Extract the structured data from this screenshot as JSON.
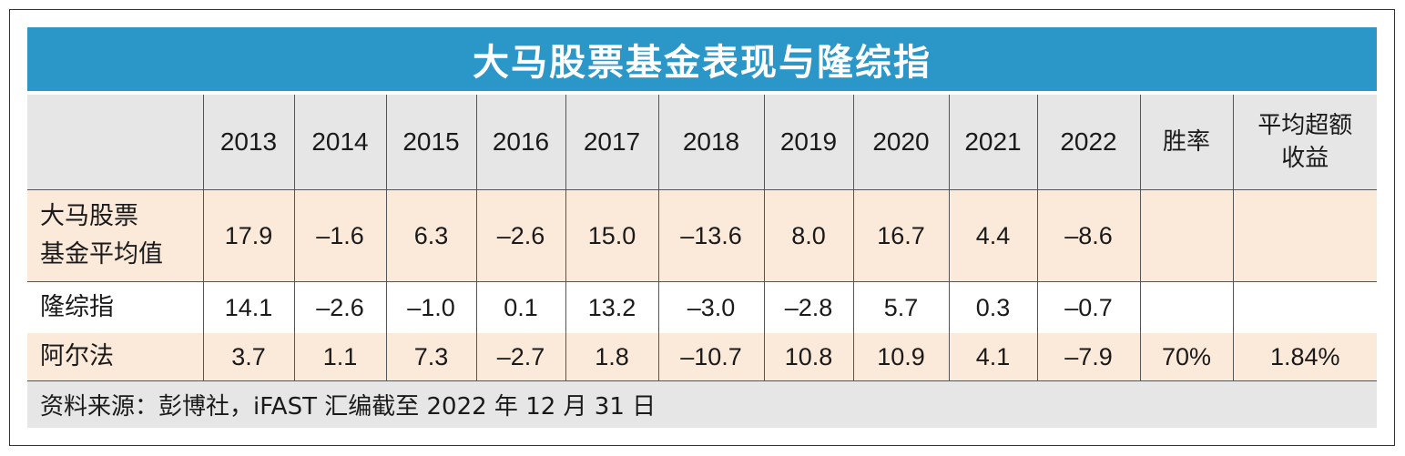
{
  "title": "大马股票基金表现与隆综指",
  "table": {
    "columns": [
      "",
      "2013",
      "2014",
      "2015",
      "2016",
      "2017",
      "2018",
      "2019",
      "2020",
      "2021",
      "2022",
      "胜率",
      "平均超额收益"
    ],
    "header_win_rate": "胜率",
    "header_excess_line1": "平均超额",
    "header_excess_line2": "收益",
    "rows": [
      {
        "label_line1": "大马股票",
        "label_line2": "基金平均值",
        "values": [
          "17.9",
          "–1.6",
          "6.3",
          "–2.6",
          "15.0",
          "–13.6",
          "8.0",
          "16.7",
          "4.4",
          "–8.6"
        ],
        "win_rate": "",
        "excess": ""
      },
      {
        "label_line1": "隆综指",
        "label_line2": "",
        "values": [
          "14.1",
          "–2.6",
          "–1.0",
          "0.1",
          "13.2",
          "–3.0",
          "–2.8",
          "5.7",
          "0.3",
          "–0.7"
        ],
        "win_rate": "",
        "excess": ""
      },
      {
        "label_line1": "阿尔法",
        "label_line2": "",
        "values": [
          "3.7",
          "1.1",
          "7.3",
          "–2.7",
          "1.8",
          "–10.7",
          "10.8",
          "10.9",
          "4.1",
          "–7.9"
        ],
        "win_rate": "70%",
        "excess": "1.84%"
      }
    ]
  },
  "source": "资料来源：彭博社，iFAST 汇编截至 2022 年 12 月 31 日",
  "colors": {
    "title_bar": "#2a97c8",
    "header_bg": "#e6e6e6",
    "highlight_row": "#fbe9da",
    "border": "#555555"
  }
}
